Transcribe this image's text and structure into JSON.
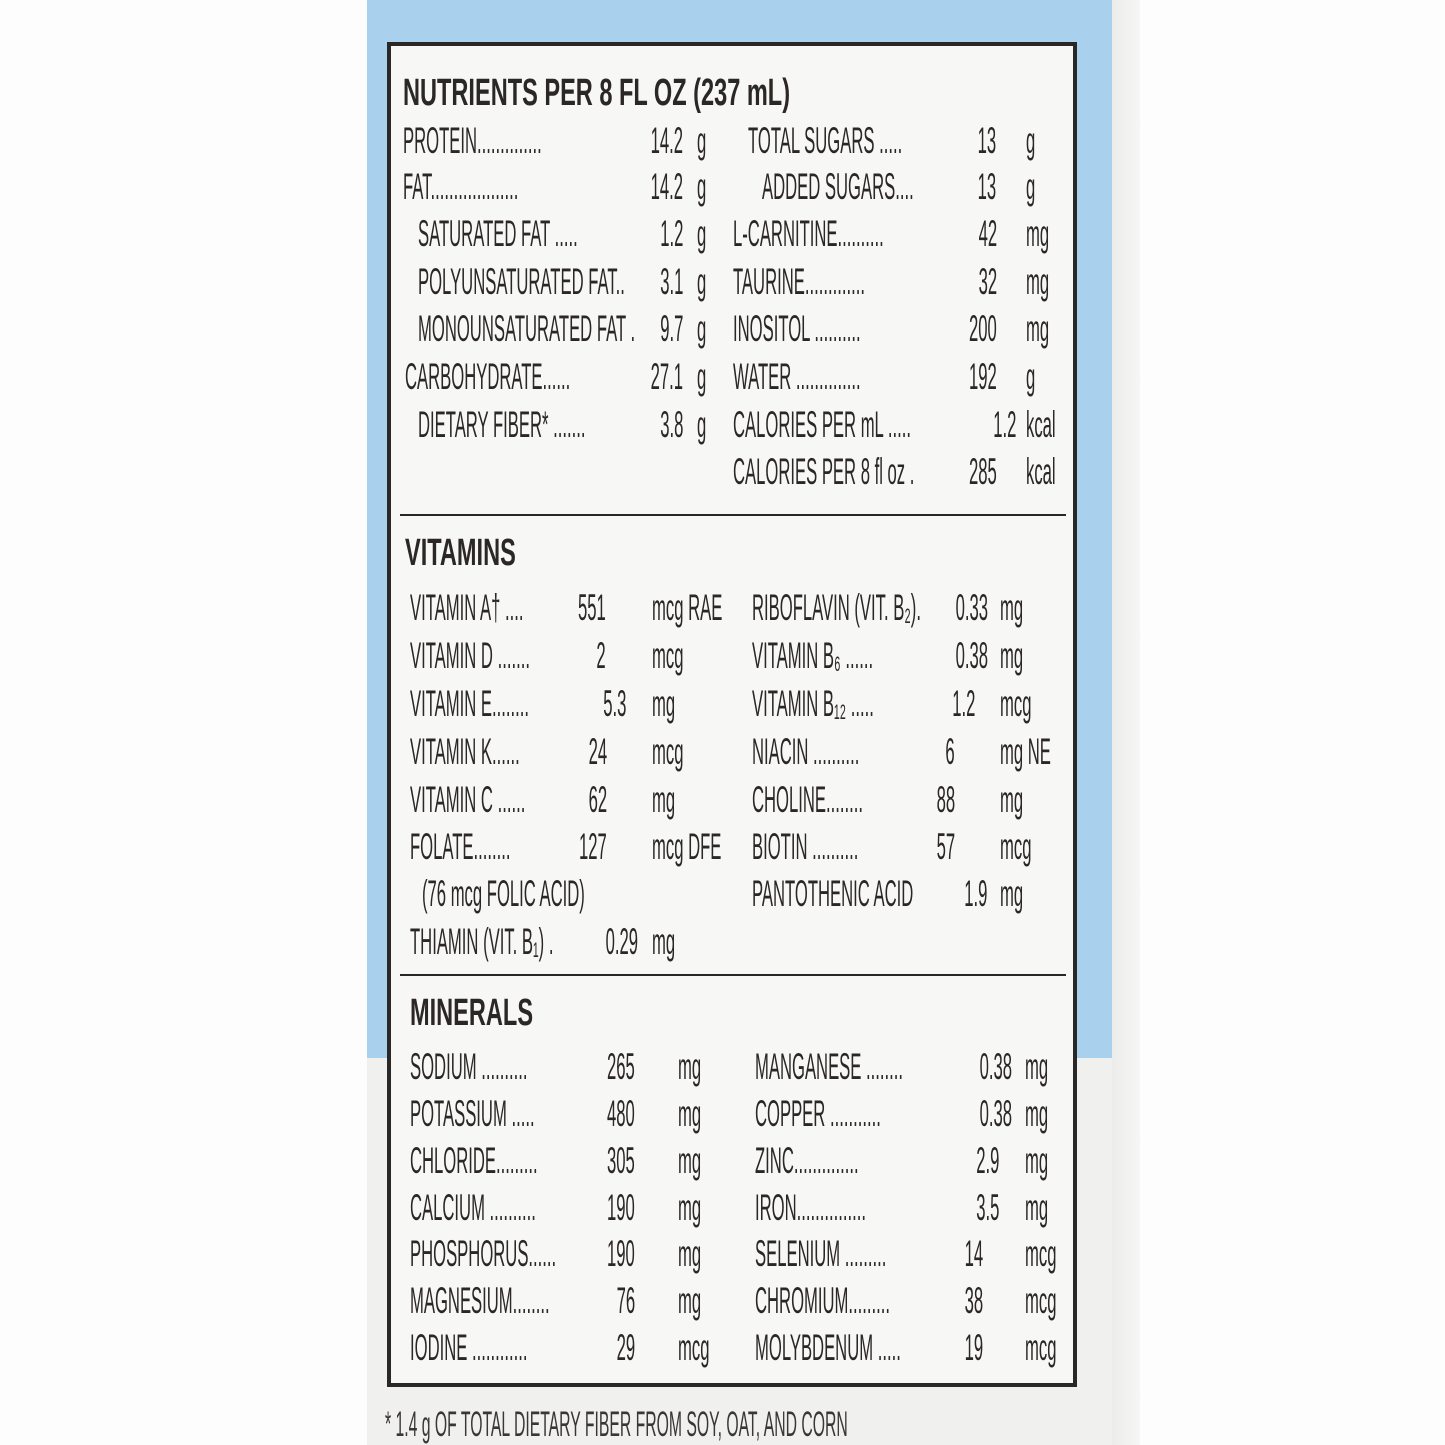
{
  "colors": {
    "label_blue": "#a9d1ee",
    "ink": "#2b2724",
    "panel": "#f7f7f5"
  },
  "nutrients": {
    "heading": "NUTRIENTS PER 8 FL OZ (237 mL)",
    "left": [
      {
        "label": "PROTEIN..............",
        "value": "14.2",
        "unit": "g"
      },
      {
        "label": "FAT...................",
        "value": "14.2",
        "unit": "g"
      },
      {
        "label": "SATURATED FAT .....",
        "value": "1.2",
        "unit": "g"
      },
      {
        "label": "POLYUNSATURATED FAT..",
        "value": "3.1",
        "unit": "g"
      },
      {
        "label": "MONOUNSATURATED FAT .",
        "value": "9.7",
        "unit": "g"
      },
      {
        "label": "CARBOHYDRATE......",
        "value": "27.1",
        "unit": "g"
      },
      {
        "label": "DIETARY FIBER* .......",
        "value": "3.8",
        "unit": "g"
      }
    ],
    "right": [
      {
        "label": "TOTAL SUGARS .....",
        "value": "13",
        "unit": "g"
      },
      {
        "label": "ADDED SUGARS....",
        "value": "13",
        "unit": "g"
      },
      {
        "label": "L-CARNITINE..........",
        "value": "42",
        "unit": "mg"
      },
      {
        "label": "TAURINE.............",
        "value": "32",
        "unit": "mg"
      },
      {
        "label": "INOSITOL ..........",
        "value": "200",
        "unit": "mg"
      },
      {
        "label": "WATER ..............",
        "value": "192",
        "unit": "g"
      },
      {
        "label": "CALORIES PER mL .....",
        "value": "1.2",
        "unit": "kcal"
      },
      {
        "label": "CALORIES PER 8 fl oz .",
        "value": "285",
        "unit": "kcal"
      }
    ]
  },
  "vitamins": {
    "heading": "VITAMINS",
    "left": [
      {
        "label": "VITAMIN A† ....",
        "value": "551",
        "unit": "mcg RAE"
      },
      {
        "label": "VITAMIN D .......",
        "value": "2",
        "unit": "mcg"
      },
      {
        "label": "VITAMIN E........",
        "value": "5.3",
        "unit": "mg"
      },
      {
        "label": "VITAMIN K......",
        "value": "24",
        "unit": "mcg"
      },
      {
        "label": "VITAMIN C ......",
        "value": "62",
        "unit": "mg"
      },
      {
        "label": "FOLATE........",
        "value": "127",
        "unit": "mcg DFE"
      },
      {
        "label": "(76 mcg FOLIC ACID)",
        "value": "",
        "unit": ""
      },
      {
        "label": "THIAMIN (VIT. B₁) .",
        "value": "0.29",
        "unit": "mg"
      }
    ],
    "right": [
      {
        "label": "RIBOFLAVIN (VIT. B₂).",
        "value": "0.33",
        "unit": "mg"
      },
      {
        "label": "VITAMIN B₆ ......",
        "value": "0.38",
        "unit": "mg"
      },
      {
        "label": "VITAMIN B₁₂ .....",
        "value": "1.2",
        "unit": "mcg"
      },
      {
        "label": "NIACIN ..........",
        "value": "6",
        "unit": "mg NE"
      },
      {
        "label": "CHOLINE........",
        "value": "88",
        "unit": "mg"
      },
      {
        "label": "BIOTIN ..........",
        "value": "57",
        "unit": "mcg"
      },
      {
        "label": "PANTOTHENIC ACID",
        "value": "1.9",
        "unit": "mg"
      }
    ]
  },
  "minerals": {
    "heading": "MINERALS",
    "left": [
      {
        "label": "SODIUM ..........",
        "value": "265",
        "unit": "mg"
      },
      {
        "label": "POTASSIUM .....",
        "value": "480",
        "unit": "mg"
      },
      {
        "label": "CHLORIDE.........",
        "value": "305",
        "unit": "mg"
      },
      {
        "label": "CALCIUM ..........",
        "value": "190",
        "unit": "mg"
      },
      {
        "label": "PHOSPHORUS......",
        "value": "190",
        "unit": "mg"
      },
      {
        "label": "MAGNESIUM........",
        "value": "76",
        "unit": "mg"
      },
      {
        "label": "IODINE ............",
        "value": "29",
        "unit": "mcg"
      }
    ],
    "right": [
      {
        "label": "MANGANESE ........",
        "value": "0.38",
        "unit": "mg"
      },
      {
        "label": "COPPER ...........",
        "value": "0.38",
        "unit": "mg"
      },
      {
        "label": "ZINC..............",
        "value": "2.9",
        "unit": "mg"
      },
      {
        "label": "IRON...............",
        "value": "3.5",
        "unit": "mg"
      },
      {
        "label": "SELENIUM .........",
        "value": "14",
        "unit": "mcg"
      },
      {
        "label": "CHROMIUM.........",
        "value": "38",
        "unit": "mcg"
      },
      {
        "label": "MOLYBDENUM .....",
        "value": "19",
        "unit": "mcg"
      }
    ]
  },
  "footnote": "* 1.4 g OF TOTAL DIETARY FIBER FROM SOY, OAT, AND CORN"
}
